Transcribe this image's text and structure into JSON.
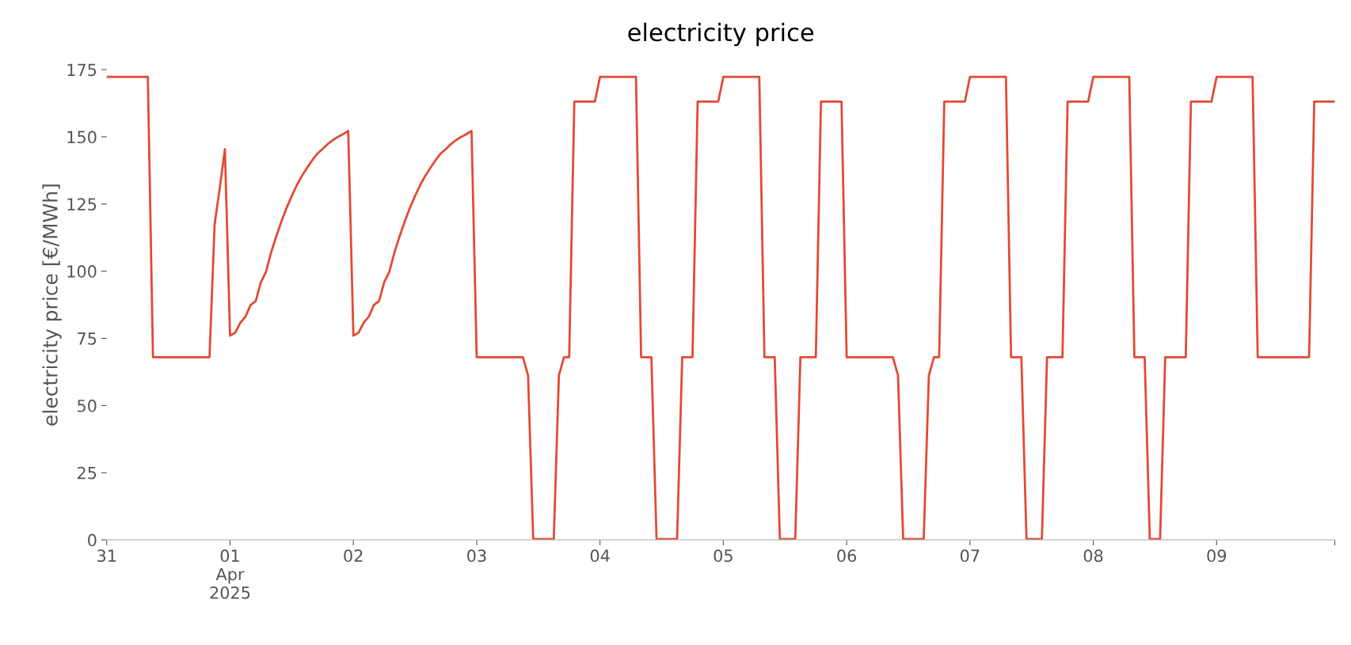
{
  "chart_data": {
    "type": "line",
    "title": "electricity price",
    "ylabel": "electricity price [€/MWh]",
    "xlim": [
      "2025-03-31T00:00",
      "2025-04-09T23:00"
    ],
    "xticks": [
      {
        "value": "2025-03-31T00:00",
        "label": "31"
      },
      {
        "value": "2025-04-01T00:00",
        "label": "01\nApr\n2025"
      },
      {
        "value": "2025-04-02T00:00",
        "label": "02"
      },
      {
        "value": "2025-04-03T00:00",
        "label": "03"
      },
      {
        "value": "2025-04-04T00:00",
        "label": "04"
      },
      {
        "value": "2025-04-05T00:00",
        "label": "05"
      },
      {
        "value": "2025-04-06T00:00",
        "label": "06"
      },
      {
        "value": "2025-04-07T00:00",
        "label": "07"
      },
      {
        "value": "2025-04-08T00:00",
        "label": "08"
      },
      {
        "value": "2025-04-09T00:00",
        "label": "09"
      },
      {
        "value": "2025-04-09T23:00",
        "label": null
      }
    ],
    "ylim": [
      0,
      175
    ],
    "yticks": [
      0,
      25,
      50,
      75,
      100,
      125,
      150,
      175
    ],
    "series": [
      {
        "color": "#e24a33",
        "x": [
          "2025-03-31T00:00",
          "2025-03-31T08:00",
          "2025-03-31T09:00",
          "2025-03-31T20:00",
          "2025-03-31T21:00",
          "2025-03-31T22:00",
          "2025-03-31T23:00",
          "2025-04-01T00:00",
          "2025-04-01T01:00",
          "2025-04-01T02:00",
          "2025-04-01T03:00",
          "2025-04-01T04:00",
          "2025-04-01T05:00",
          "2025-04-01T06:00",
          "2025-04-01T07:00",
          "2025-04-01T08:00",
          "2025-04-01T09:00",
          "2025-04-01T10:00",
          "2025-04-01T11:00",
          "2025-04-01T12:00",
          "2025-04-01T13:00",
          "2025-04-01T14:00",
          "2025-04-01T15:00",
          "2025-04-01T16:00",
          "2025-04-01T17:00",
          "2025-04-01T18:00",
          "2025-04-01T19:00",
          "2025-04-01T20:00",
          "2025-04-01T21:00",
          "2025-04-01T22:00",
          "2025-04-01T23:00",
          "2025-04-02T00:00",
          "2025-04-02T01:00",
          "2025-04-02T02:00",
          "2025-04-02T03:00",
          "2025-04-02T04:00",
          "2025-04-02T05:00",
          "2025-04-02T06:00",
          "2025-04-02T07:00",
          "2025-04-02T08:00",
          "2025-04-02T09:00",
          "2025-04-02T10:00",
          "2025-04-02T11:00",
          "2025-04-02T12:00",
          "2025-04-02T13:00",
          "2025-04-02T14:00",
          "2025-04-02T15:00",
          "2025-04-02T16:00",
          "2025-04-02T17:00",
          "2025-04-02T18:00",
          "2025-04-02T19:00",
          "2025-04-02T20:00",
          "2025-04-02T21:00",
          "2025-04-02T22:00",
          "2025-04-02T23:00",
          "2025-04-03T00:00",
          "2025-04-03T09:00",
          "2025-04-03T10:00",
          "2025-04-03T11:00",
          "2025-04-03T15:00",
          "2025-04-03T16:00",
          "2025-04-03T17:00",
          "2025-04-03T18:00",
          "2025-04-03T19:00",
          "2025-04-03T23:00",
          "2025-04-04T00:00",
          "2025-04-04T07:00",
          "2025-04-04T08:00",
          "2025-04-04T10:00",
          "2025-04-04T11:00",
          "2025-04-04T15:00",
          "2025-04-04T16:00",
          "2025-04-04T18:00",
          "2025-04-04T19:00",
          "2025-04-04T23:00",
          "2025-04-05T00:00",
          "2025-04-05T07:00",
          "2025-04-05T08:00",
          "2025-04-05T10:00",
          "2025-04-05T11:00",
          "2025-04-05T14:00",
          "2025-04-05T15:00",
          "2025-04-05T18:00",
          "2025-04-05T19:00",
          "2025-04-05T23:00",
          "2025-04-06T00:00",
          "2025-04-06T09:00",
          "2025-04-06T10:00",
          "2025-04-06T11:00",
          "2025-04-06T15:00",
          "2025-04-06T16:00",
          "2025-04-06T17:00",
          "2025-04-06T18:00",
          "2025-04-06T19:00",
          "2025-04-06T23:00",
          "2025-04-07T00:00",
          "2025-04-07T07:00",
          "2025-04-07T08:00",
          "2025-04-07T10:00",
          "2025-04-07T11:00",
          "2025-04-07T14:00",
          "2025-04-07T15:00",
          "2025-04-07T18:00",
          "2025-04-07T19:00",
          "2025-04-07T23:00",
          "2025-04-08T00:00",
          "2025-04-08T07:00",
          "2025-04-08T08:00",
          "2025-04-08T10:00",
          "2025-04-08T11:00",
          "2025-04-08T13:00",
          "2025-04-08T14:00",
          "2025-04-08T18:00",
          "2025-04-08T19:00",
          "2025-04-08T23:00",
          "2025-04-09T00:00",
          "2025-04-09T07:00",
          "2025-04-09T08:00",
          "2025-04-09T18:00",
          "2025-04-09T19:00",
          "2025-04-09T23:00"
        ],
        "values": [
          172.3,
          172.3,
          68,
          68,
          117.5,
          131,
          145.4,
          76,
          77.1,
          80.8,
          83.1,
          87.4,
          88.9,
          95.9,
          99.8,
          107,
          113,
          118.5,
          123.5,
          128,
          132,
          135.5,
          138.5,
          141.3,
          143.8,
          145.5,
          147.3,
          148.8,
          150,
          151,
          152.2,
          76,
          77.1,
          80.8,
          83.1,
          87.4,
          88.9,
          95.9,
          99.8,
          107,
          113,
          118.5,
          123.5,
          128,
          132,
          135.5,
          138.5,
          141.3,
          143.8,
          145.5,
          147.3,
          148.8,
          150,
          151,
          152.2,
          68,
          68,
          61.2,
          0.3,
          0.3,
          61.2,
          68,
          68,
          163.1,
          163.1,
          172.3,
          172.3,
          68,
          68,
          0.3,
          0.3,
          68,
          68,
          163.1,
          163.1,
          172.3,
          172.3,
          68,
          68,
          0.3,
          0.3,
          68,
          68,
          163.1,
          163.1,
          68,
          68,
          61.2,
          0.3,
          0.3,
          61.2,
          68,
          68,
          163.1,
          163.1,
          172.3,
          172.3,
          68,
          68,
          0.3,
          0.3,
          68,
          68,
          163.1,
          163.1,
          172.3,
          172.3,
          68,
          68,
          0.3,
          0.3,
          68,
          68,
          163.1,
          163.1,
          172.3,
          172.3,
          68,
          68,
          163.1,
          163.1
        ]
      }
    ]
  }
}
